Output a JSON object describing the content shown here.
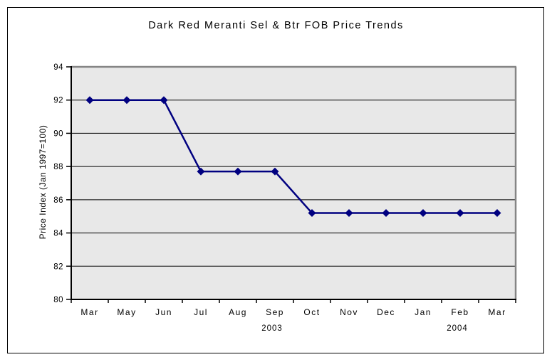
{
  "chart_data": {
    "type": "line",
    "title": "Dark Red Meranti Sel & Btr FOB Price Trends",
    "xlabel": "",
    "ylabel": "Price Index (Jan 1997=100)",
    "categories": [
      "Mar",
      "May",
      "Jun",
      "Jul",
      "Aug",
      "Sep",
      "Oct",
      "Nov",
      "Dec",
      "Jan",
      "Feb",
      "Mar"
    ],
    "values": [
      92.0,
      92.0,
      92.0,
      87.7,
      87.7,
      87.7,
      85.2,
      85.2,
      85.2,
      85.2,
      85.2,
      85.2
    ],
    "year_labels": [
      {
        "text": "2003",
        "category_index": 5
      },
      {
        "text": "2004",
        "category_index": 10
      }
    ],
    "ylim": [
      80,
      94
    ],
    "yticks": [
      80,
      82,
      84,
      86,
      88,
      90,
      92,
      94
    ],
    "grid": "horizontal",
    "legend": "none",
    "marker": "diamond",
    "colors": {
      "line": "#000080",
      "marker": "#000080",
      "plot_bg": "#E8E8E8",
      "plot_border": "#858585",
      "gridline": "#000000",
      "axis": "#000000",
      "text": "#000000",
      "page_bg": "#FFFFFF",
      "frame_border": "#000000"
    }
  }
}
